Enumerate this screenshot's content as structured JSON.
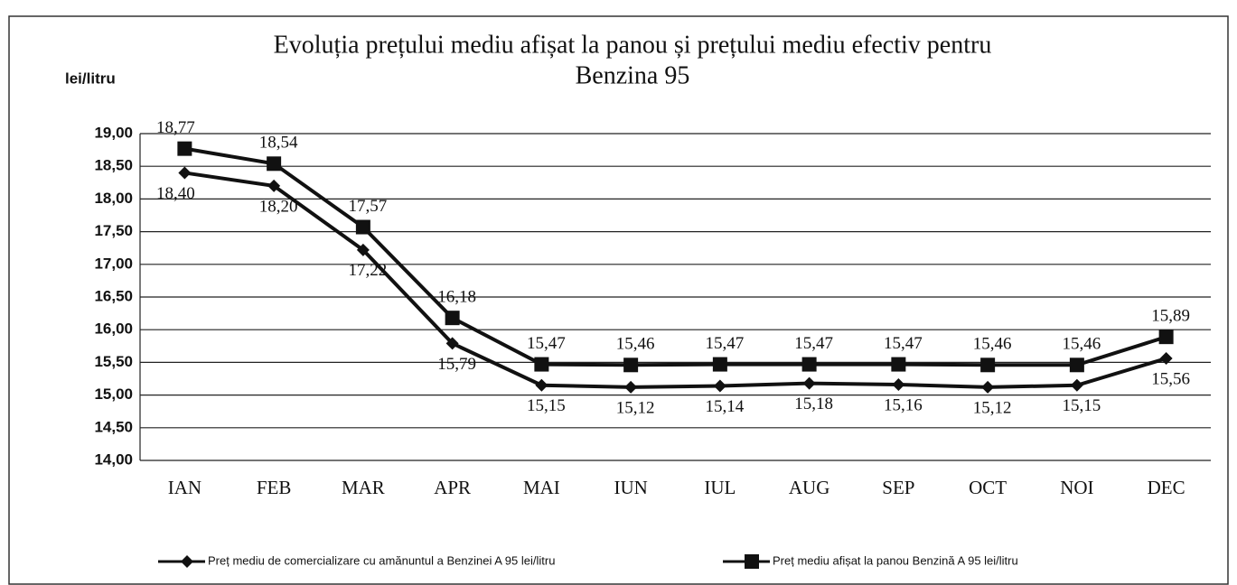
{
  "chart_data": {
    "type": "line",
    "title": [
      "Evoluția prețului mediu afișat la panou și prețului mediu efectiv pentru",
      "Benzina 95"
    ],
    "y_label": "lei/litru",
    "categories": [
      "IAN",
      "FEB",
      "MAR",
      "APR",
      "MAI",
      "IUN",
      "IUL",
      "AUG",
      "SEP",
      "OCT",
      "NOI",
      "DEC"
    ],
    "ylim": [
      14,
      19
    ],
    "yticks": [
      {
        "value": 14,
        "label": "14,00"
      },
      {
        "value": 14.5,
        "label": "14,50"
      },
      {
        "value": 15,
        "label": "15,00"
      },
      {
        "value": 15.5,
        "label": "15,50"
      },
      {
        "value": 16,
        "label": "16,00"
      },
      {
        "value": 16.5,
        "label": "16,50"
      },
      {
        "value": 17,
        "label": "17,00"
      },
      {
        "value": 17.5,
        "label": "17,50"
      },
      {
        "value": 18,
        "label": "18,00"
      },
      {
        "value": 18.5,
        "label": "18,50"
      },
      {
        "value": 19,
        "label": "19,00"
      }
    ],
    "grid": true,
    "legend": "bottom",
    "series": [
      {
        "name": "Preț mediu de comercializare cu amănuntul a Benzinei A 95 lei/litru",
        "color": "#111111",
        "marker": "diamond",
        "label_position": "below",
        "values": [
          18.4,
          18.2,
          17.22,
          15.79,
          15.15,
          15.12,
          15.14,
          15.18,
          15.16,
          15.12,
          15.15,
          15.56
        ],
        "value_labels": [
          "18,40",
          "18,20",
          "17,22",
          "15,79",
          "15,15",
          "15,12",
          "15,14",
          "15,18",
          "15,16",
          "15,12",
          "15,15",
          "15,56"
        ]
      },
      {
        "name": "Preț  mediu afișat la panou Benzină A 95 lei/litru",
        "color": "#111111",
        "marker": "square",
        "label_position": "above",
        "values": [
          18.77,
          18.54,
          17.57,
          16.18,
          15.47,
          15.46,
          15.47,
          15.47,
          15.47,
          15.46,
          15.46,
          15.89
        ],
        "value_labels": [
          "18,77",
          "18,54",
          "17,57",
          "16,18",
          "15,47",
          "15,46",
          "15,47",
          "15,47",
          "15,47",
          "15,46",
          "15,46",
          "15,89"
        ]
      }
    ]
  }
}
